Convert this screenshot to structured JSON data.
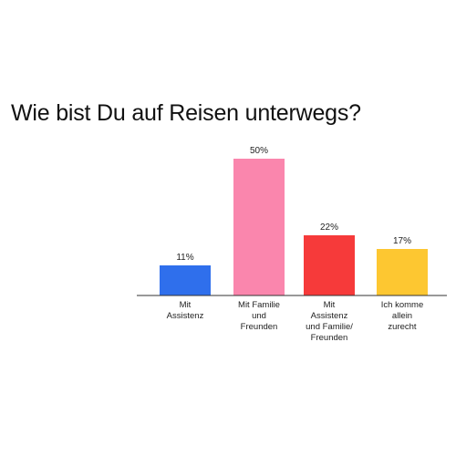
{
  "chart_data": {
    "type": "bar",
    "title": "Wie bist Du auf Reisen unterwegs?",
    "categories": [
      [
        "Mit",
        "Assistenz"
      ],
      [
        "Mit Familie",
        "und",
        "Freunden"
      ],
      [
        "Mit",
        "Assistenz",
        "und Familie/",
        "Freunden"
      ],
      [
        "Ich komme",
        "allein",
        "zurecht"
      ]
    ],
    "values": [
      11,
      50,
      22,
      17
    ],
    "value_labels": [
      "11%",
      "50%",
      "22%",
      "17%"
    ],
    "colors": [
      "#2f6fec",
      "#fa86ad",
      "#f63a3a",
      "#fdc731"
    ],
    "ylim": [
      0,
      50
    ],
    "grid": false,
    "legend": "none"
  }
}
